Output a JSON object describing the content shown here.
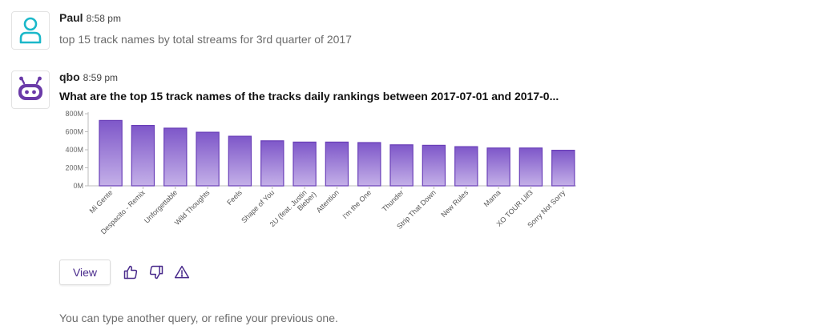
{
  "user_message": {
    "name": "Paul",
    "time": "8:58 pm",
    "text": "top 15 track names by total streams for 3rd quarter of 2017",
    "avatar_icon": "user-icon",
    "avatar_color": "#1bb8c9"
  },
  "bot_message": {
    "name": "qbo",
    "time": "8:59 pm",
    "title": "What are the top 15 track names of the tracks daily rankings between 2017-07-01 and 2017-0...",
    "avatar_icon": "robot-icon",
    "avatar_color": "#6a3aa8"
  },
  "chart_data": {
    "type": "bar",
    "title": "",
    "xlabel": "",
    "ylabel": "",
    "ylim": [
      0,
      800
    ],
    "yticks": [
      "0M",
      "200M",
      "400M",
      "600M",
      "800M"
    ],
    "grid": false,
    "categories": [
      "Mi Gente",
      "Despacito - Remix",
      "Unforgettable",
      "Wild Thoughts",
      "Feels",
      "Shape of You",
      "2U (feat. Justin Bieber)",
      "Attention",
      "I'm the One",
      "Thunder",
      "Strip That Down",
      "New Rules",
      "Mama",
      "XO TOUR Llif3",
      "Sorry Not Sorry"
    ],
    "values": [
      725,
      670,
      640,
      595,
      550,
      500,
      485,
      485,
      480,
      455,
      450,
      435,
      420,
      420,
      395
    ],
    "bar_color_top": "#7e57c9",
    "bar_color_bottom": "#c4b0e8",
    "bar_stroke": "#6a3fb8"
  },
  "actions": {
    "view_label": "View",
    "thumbs_up_icon": "thumbs-up-icon",
    "thumbs_down_icon": "thumbs-down-icon",
    "warning_icon": "warning-icon",
    "icon_color": "#4a2b8c"
  },
  "footer_text": "You can type another query, or refine your previous one."
}
